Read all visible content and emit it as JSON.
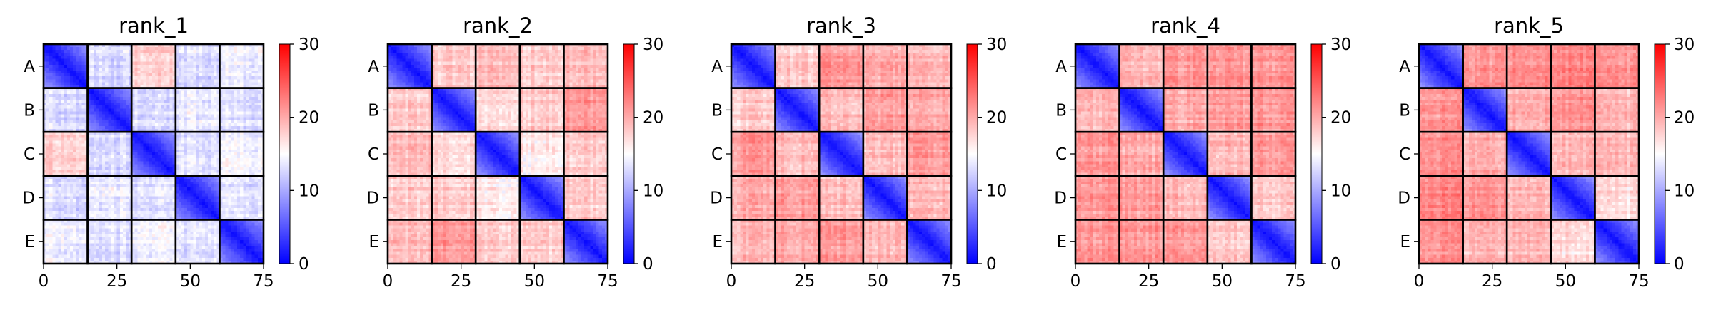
{
  "figure": {
    "colors": {
      "low": "#0000ff",
      "mid": "#ffffff",
      "high": "#ff0000",
      "block_border": "#000000"
    }
  },
  "chart_data": [
    {
      "type": "heatmap",
      "title": "rank_1",
      "x": {
        "ticks": [
          0,
          25,
          50,
          75
        ],
        "range": [
          0,
          75
        ]
      },
      "y_categories": [
        "A",
        "B",
        "C",
        "D",
        "E"
      ],
      "colorbar": {
        "ticks": [
          0,
          10,
          20,
          30
        ],
        "range": [
          0,
          30
        ],
        "cmap": "bwr"
      },
      "block_size": 15,
      "block_means": [
        [
          4,
          13,
          18,
          13,
          14
        ],
        [
          13,
          4,
          13,
          14,
          13
        ],
        [
          18,
          13,
          4,
          13,
          14
        ],
        [
          13,
          14,
          13,
          4,
          13
        ],
        [
          14,
          13,
          14,
          13,
          4
        ]
      ]
    },
    {
      "type": "heatmap",
      "title": "rank_2",
      "x": {
        "ticks": [
          0,
          25,
          50,
          75
        ],
        "range": [
          0,
          75
        ]
      },
      "y_categories": [
        "A",
        "B",
        "C",
        "D",
        "E"
      ],
      "colorbar": {
        "ticks": [
          0,
          10,
          20,
          30
        ],
        "range": [
          0,
          30
        ],
        "cmap": "bwr"
      },
      "block_size": 15,
      "block_means": [
        [
          5,
          18,
          19,
          18,
          19
        ],
        [
          18,
          5,
          17,
          18,
          21
        ],
        [
          19,
          17,
          5,
          16,
          18
        ],
        [
          18,
          18,
          16,
          5,
          18
        ],
        [
          19,
          21,
          18,
          18,
          5
        ]
      ]
    },
    {
      "type": "heatmap",
      "title": "rank_3",
      "x": {
        "ticks": [
          0,
          25,
          50,
          75
        ],
        "range": [
          0,
          75
        ]
      },
      "y_categories": [
        "A",
        "B",
        "C",
        "D",
        "E"
      ],
      "colorbar": {
        "ticks": [
          0,
          10,
          20,
          30
        ],
        "range": [
          0,
          30
        ],
        "cmap": "bwr"
      },
      "block_size": 15,
      "block_means": [
        [
          5,
          18,
          21,
          20,
          19
        ],
        [
          18,
          5,
          19,
          21,
          20
        ],
        [
          21,
          19,
          5,
          19,
          21
        ],
        [
          20,
          21,
          19,
          5,
          19
        ],
        [
          19,
          20,
          21,
          19,
          5
        ]
      ]
    },
    {
      "type": "heatmap",
      "title": "rank_4",
      "x": {
        "ticks": [
          0,
          25,
          50,
          75
        ],
        "range": [
          0,
          75
        ]
      },
      "y_categories": [
        "A",
        "B",
        "C",
        "D",
        "E"
      ],
      "colorbar": {
        "ticks": [
          0,
          10,
          20,
          30
        ],
        "range": [
          0,
          30
        ],
        "cmap": "bwr"
      },
      "block_size": 15,
      "block_means": [
        [
          5,
          19,
          21,
          21,
          21
        ],
        [
          19,
          5,
          20,
          21,
          21
        ],
        [
          21,
          20,
          5,
          19,
          21
        ],
        [
          21,
          21,
          19,
          5,
          18
        ],
        [
          21,
          21,
          21,
          18,
          5
        ]
      ]
    },
    {
      "type": "heatmap",
      "title": "rank_5",
      "x": {
        "ticks": [
          0,
          25,
          50,
          75
        ],
        "range": [
          0,
          75
        ]
      },
      "y_categories": [
        "A",
        "B",
        "C",
        "D",
        "E"
      ],
      "colorbar": {
        "ticks": [
          0,
          10,
          20,
          30
        ],
        "range": [
          0,
          30
        ],
        "cmap": "bwr"
      },
      "block_size": 15,
      "block_means": [
        [
          5,
          21,
          22,
          22,
          21
        ],
        [
          21,
          5,
          20,
          21,
          19
        ],
        [
          22,
          20,
          5,
          19,
          19
        ],
        [
          22,
          21,
          19,
          5,
          17
        ],
        [
          21,
          19,
          19,
          17,
          5
        ]
      ]
    }
  ]
}
